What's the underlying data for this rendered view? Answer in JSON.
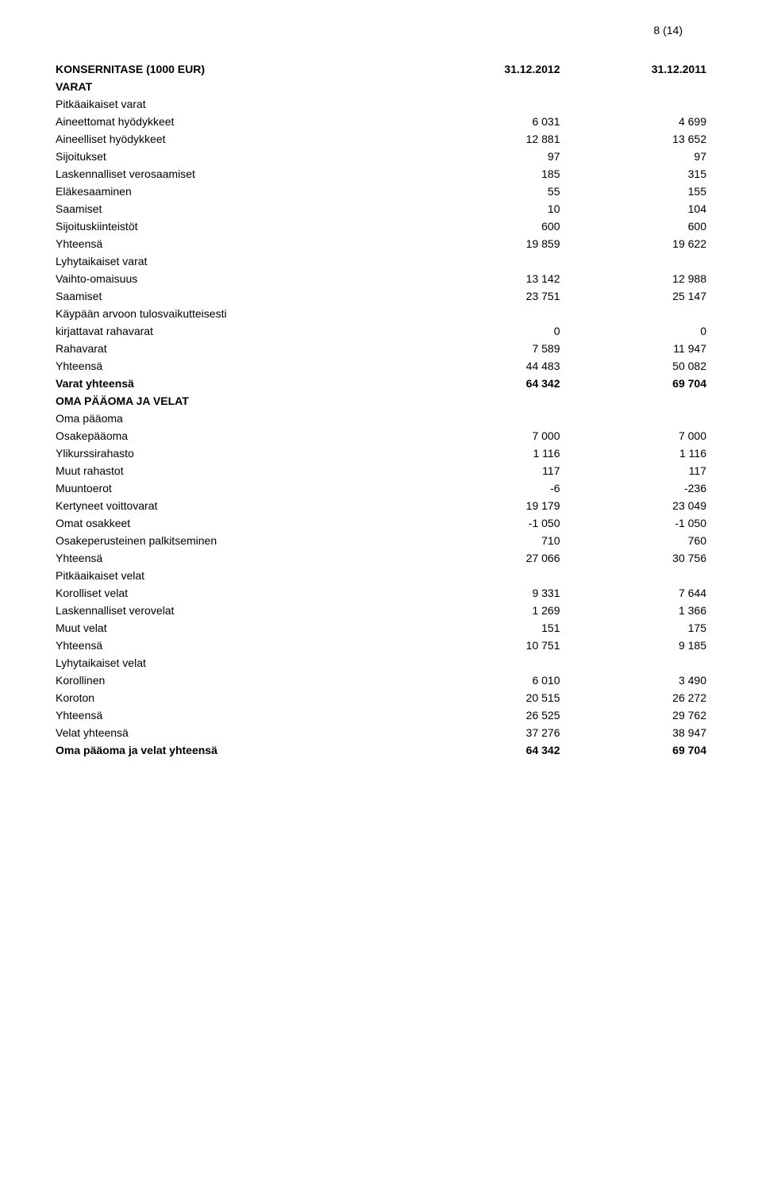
{
  "page_number": "8 (14)",
  "title": {
    "label": "KONSERNITASE (1000 EUR)",
    "col1": "31.12.2012",
    "col2": "31.12.2011"
  },
  "assets": {
    "heading": "VARAT",
    "noncurrent": {
      "heading": "Pitkäaikaiset varat",
      "rows": [
        {
          "label": "Aineettomat hyödykkeet",
          "c1": "6 031",
          "c2": "4 699"
        },
        {
          "label": "Aineelliset hyödykkeet",
          "c1": "12 881",
          "c2": "13 652"
        },
        {
          "label": "Sijoitukset",
          "c1": "97",
          "c2": "97"
        },
        {
          "label": "Laskennalliset verosaamiset",
          "c1": "185",
          "c2": "315"
        },
        {
          "label": "Eläkesaaminen",
          "c1": "55",
          "c2": "155"
        },
        {
          "label": "Saamiset",
          "c1": "10",
          "c2": "104"
        },
        {
          "label": "Sijoituskiinteistöt",
          "c1": "600",
          "c2": "600"
        }
      ],
      "total": {
        "label": "Yhteensä",
        "c1": "19 859",
        "c2": "19 622"
      }
    },
    "current": {
      "heading": "Lyhytaikaiset varat",
      "rows": [
        {
          "label": "Vaihto-omaisuus",
          "c1": "13 142",
          "c2": "12 988"
        },
        {
          "label": "Saamiset",
          "c1": "23 751",
          "c2": "25 147"
        }
      ],
      "fvtpl_label": "Käypään arvoon tulosvaikutteisesti",
      "fvtpl_row": {
        "label": "kirjattavat rahavarat",
        "c1": "0",
        "c2": "0"
      },
      "cash": {
        "label": "Rahavarat",
        "c1": "7 589",
        "c2": "11 947"
      },
      "total": {
        "label": "Yhteensä",
        "c1": "44 483",
        "c2": "50 082"
      }
    },
    "total": {
      "label": "Varat yhteensä",
      "c1": "64 342",
      "c2": "69 704"
    }
  },
  "equity_liab": {
    "heading": "OMA PÄÄOMA JA VELAT",
    "equity": {
      "heading": "Oma pääoma",
      "rows": [
        {
          "label": "Osakepääoma",
          "c1": "7 000",
          "c2": "7 000"
        },
        {
          "label": "Ylikurssirahasto",
          "c1": "1 116",
          "c2": "1 116"
        },
        {
          "label": "Muut rahastot",
          "c1": "117",
          "c2": "117"
        },
        {
          "label": "Muuntoerot",
          "c1": "-6",
          "c2": "-236"
        },
        {
          "label": "Kertyneet voittovarat",
          "c1": "19 179",
          "c2": "23 049"
        },
        {
          "label": "Omat osakkeet",
          "c1": "-1 050",
          "c2": "-1 050"
        },
        {
          "label": "Osakeperusteinen palkitseminen",
          "c1": "710",
          "c2": "760"
        }
      ],
      "total": {
        "label": "Yhteensä",
        "c1": "27 066",
        "c2": "30 756"
      }
    },
    "noncurrent": {
      "heading": "Pitkäaikaiset velat",
      "rows": [
        {
          "label": "Korolliset velat",
          "c1": "9 331",
          "c2": "7 644"
        },
        {
          "label": "Laskennalliset verovelat",
          "c1": "1 269",
          "c2": "1 366"
        },
        {
          "label": "Muut velat",
          "c1": "151",
          "c2": "175"
        }
      ],
      "total": {
        "label": "Yhteensä",
        "c1": "10 751",
        "c2": "9 185"
      }
    },
    "current": {
      "heading": "Lyhytaikaiset velat",
      "rows": [
        {
          "label": "Korollinen",
          "c1": "6 010",
          "c2": "3 490"
        },
        {
          "label": "Koroton",
          "c1": "20 515",
          "c2": "26 272"
        }
      ],
      "total": {
        "label": "Yhteensä",
        "c1": "26 525",
        "c2": "29 762"
      }
    },
    "liab_total": {
      "label": "Velat yhteensä",
      "c1": "37 276",
      "c2": "38 947"
    },
    "grand_total": {
      "label": "Oma pääoma ja velat yhteensä",
      "c1": "64 342",
      "c2": "69 704"
    }
  }
}
